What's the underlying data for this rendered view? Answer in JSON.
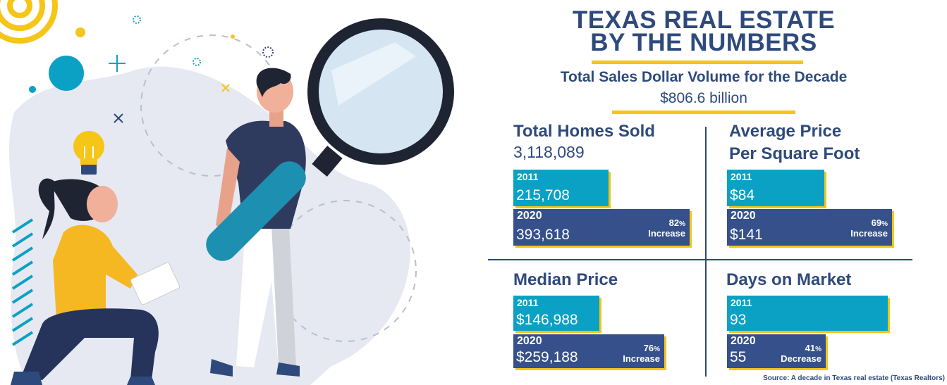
{
  "title_line1": "TEXAS REAL ESTATE",
  "title_line2": "BY THE NUMBERS",
  "subtitle": "Total Sales Dollar Volume for the Decade",
  "decade_volume": "$806.6 billion",
  "source": "Source: A decade in Texas real estate (Texas Realtors)",
  "colors": {
    "navy": "#2e4a7d",
    "bar_2011": "#0aa1c4",
    "bar_2020": "#35508a",
    "accent": "#f5c518"
  },
  "chart_data": [
    {
      "type": "bar",
      "title_line1": "Total Homes Sold",
      "title_line2": "",
      "total": "3,118,089",
      "categories": [
        "2011",
        "2020"
      ],
      "values": [
        215708,
        393618
      ],
      "value_labels": [
        "215,708",
        "393,618"
      ],
      "change_pct": "82",
      "change_word": "Increase"
    },
    {
      "type": "bar",
      "title_line1": "Average Price",
      "title_line2": "Per Square Foot",
      "total": "",
      "categories": [
        "2011",
        "2020"
      ],
      "values": [
        84,
        141
      ],
      "value_labels": [
        "$84",
        "$141"
      ],
      "change_pct": "69",
      "change_word": "Increase"
    },
    {
      "type": "bar",
      "title_line1": "Median Price",
      "title_line2": "",
      "total": "",
      "categories": [
        "2011",
        "2020"
      ],
      "values": [
        146988,
        259188
      ],
      "value_labels": [
        "$146,988",
        "$259,188"
      ],
      "change_pct": "76",
      "change_word": "Increase"
    },
    {
      "type": "bar",
      "title_line1": "Days on Market",
      "title_line2": "",
      "total": "",
      "categories": [
        "2011",
        "2020"
      ],
      "values": [
        93,
        55
      ],
      "value_labels": [
        "93",
        "55"
      ],
      "change_pct": "41",
      "change_word": "Decrease"
    }
  ]
}
